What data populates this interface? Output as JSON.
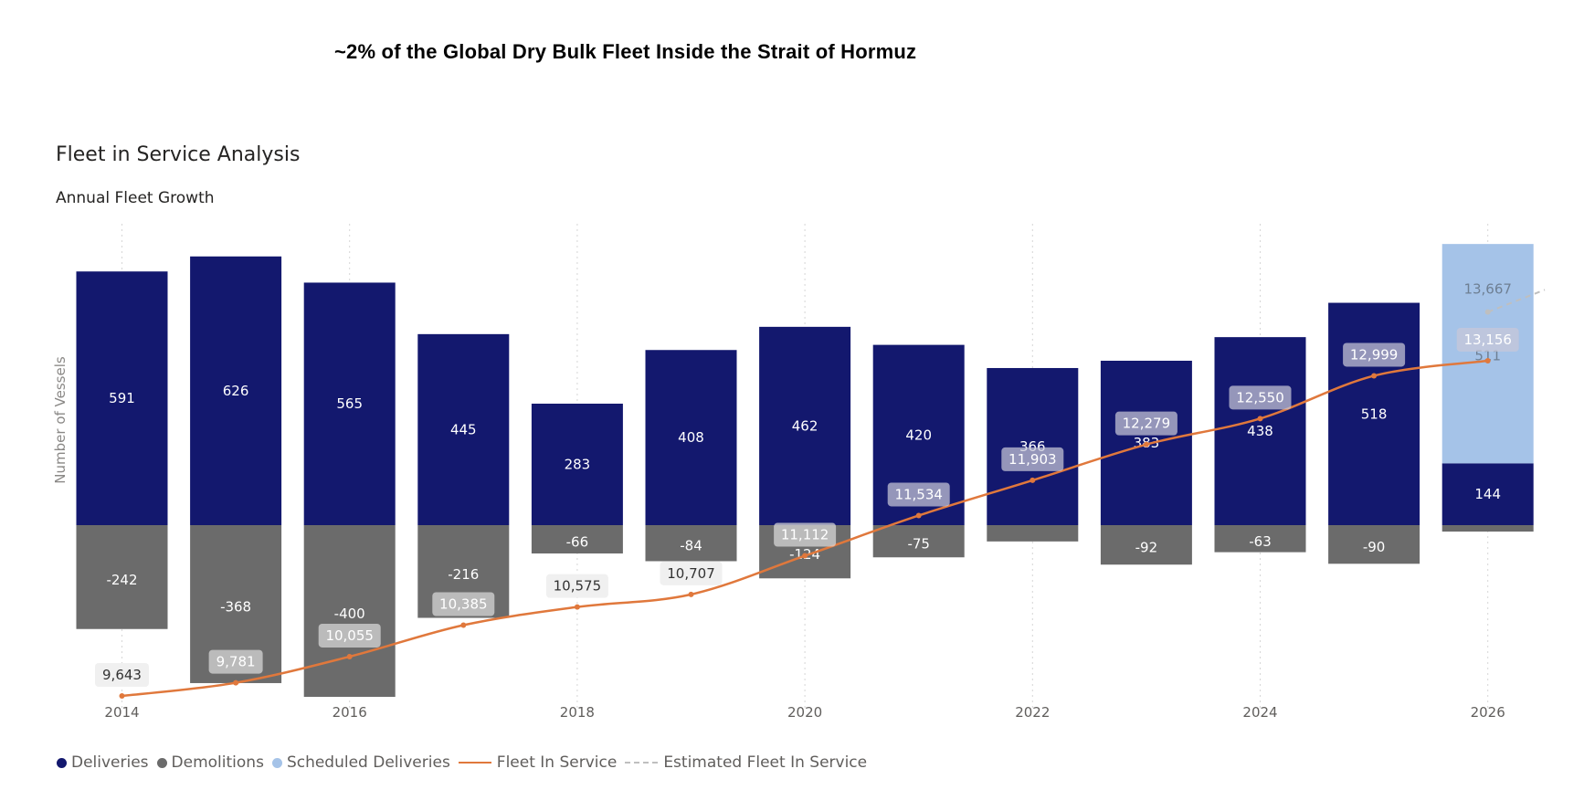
{
  "headline": "~2% of the Global Dry Bulk Fleet Inside the Strait of Hormuz",
  "colors": {
    "deliveries": "#13186e",
    "demolitions": "#6b6b6b",
    "scheduled": "#a5c3e8",
    "fleet_line": "#e0783c",
    "estimated_line": "#bfbfbf"
  },
  "chart_data": {
    "type": "bar",
    "title": "Fleet in Service Analysis",
    "subtitle": "Annual Fleet Growth",
    "ylabel": "Number of Vessels",
    "xlabel": "",
    "x": [
      2014,
      2015,
      2016,
      2017,
      2018,
      2019,
      2020,
      2021,
      2022,
      2023,
      2024,
      2025,
      2026
    ],
    "x_tick_labels": [
      "2014",
      "2016",
      "2018",
      "2020",
      "2022",
      "2024",
      "2026"
    ],
    "x_tick_values": [
      2014,
      2016,
      2018,
      2020,
      2022,
      2024,
      2026
    ],
    "ylim": [
      -425,
      750
    ],
    "series": [
      {
        "name": "Deliveries",
        "type": "bar",
        "values": [
          591,
          626,
          565,
          445,
          283,
          408,
          462,
          420,
          366,
          383,
          438,
          518,
          144
        ],
        "labels": [
          "591",
          "626",
          "565",
          "445",
          "283",
          "408",
          "462",
          "420",
          "366",
          "383",
          "438",
          "518",
          "144"
        ]
      },
      {
        "name": "Demolitions",
        "type": "bar",
        "values": [
          -242,
          -368,
          -400,
          -216,
          -66,
          -84,
          -124,
          -75,
          -38,
          -92,
          -63,
          -90,
          -15
        ],
        "labels": [
          "-242",
          "-368",
          "-400",
          "-216",
          "-66",
          "-84",
          "-124",
          "-75",
          "",
          "-92",
          "-63",
          "-90",
          ""
        ]
      },
      {
        "name": "Scheduled Deliveries",
        "type": "bar",
        "values": [
          0,
          0,
          0,
          0,
          0,
          0,
          0,
          0,
          0,
          0,
          0,
          0,
          511
        ],
        "labels": [
          "",
          "",
          "",
          "",
          "",
          "",
          "",
          "",
          "",
          "",
          "",
          "",
          "511"
        ]
      },
      {
        "name": "Fleet In Service",
        "type": "line",
        "axis": "secondary",
        "values": [
          9643,
          9781,
          10055,
          10385,
          10575,
          10707,
          11112,
          11534,
          11903,
          12279,
          12550,
          12999,
          13156
        ],
        "labels": [
          "9,643",
          "9,781",
          "10,055",
          "10,385",
          "10,575",
          "10,707",
          "11,112",
          "11,534",
          "11,903",
          "12,279",
          "12,550",
          "12,999",
          "13,156"
        ]
      },
      {
        "name": "Estimated Fleet In Service",
        "type": "line",
        "style": "dashed",
        "axis": "secondary",
        "x": [
          2026,
          2026.5
        ],
        "values": [
          13667,
          13900
        ],
        "labels": [
          "13,667"
        ]
      }
    ],
    "secondary_ylim": [
      9643,
      13300
    ],
    "legend_position": "bottom-left"
  },
  "legend": [
    {
      "label": "Deliveries",
      "kind": "dot",
      "color": "#13186e"
    },
    {
      "label": "Demolitions",
      "kind": "dot",
      "color": "#6b6b6b"
    },
    {
      "label": "Scheduled Deliveries",
      "kind": "dot",
      "color": "#a5c3e8"
    },
    {
      "label": "Fleet In Service",
      "kind": "line",
      "color": "#e0783c"
    },
    {
      "label": "Estimated Fleet In Service",
      "kind": "dashed",
      "color": "#bfbfbf"
    }
  ]
}
